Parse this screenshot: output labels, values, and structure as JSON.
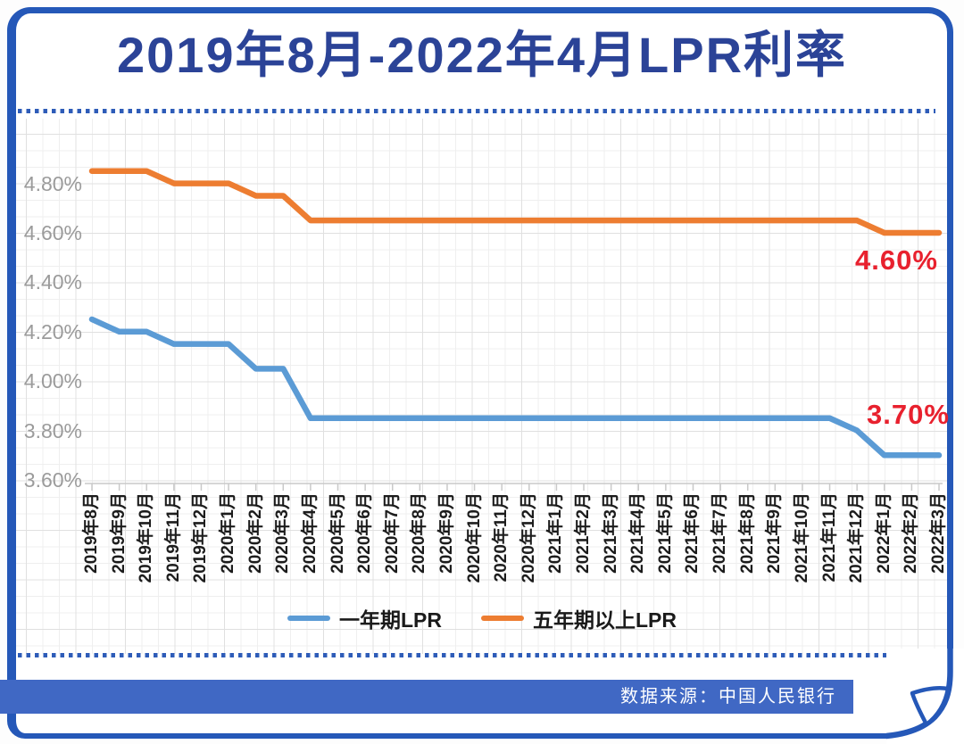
{
  "title": "2019年8月-2022年4月LPR利率",
  "source_banner": "数据来源：中国人民银行",
  "colors": {
    "frame_blue": "#2558B8",
    "title_blue": "#2B4397",
    "banner_blue": "#4068C4",
    "line_1y_blue": "#5B9BD5",
    "line_5y_orange": "#ED7D31",
    "annotation_red": "#E8212E",
    "axis_label_gray": "#9B9B9B"
  },
  "y_axis": {
    "ticks": [
      {
        "label": "4.80%",
        "value": 4.8
      },
      {
        "label": "4.60%",
        "value": 4.6
      },
      {
        "label": "4.40%",
        "value": 4.4
      },
      {
        "label": "4.20%",
        "value": 4.2
      },
      {
        "label": "4.00%",
        "value": 4.0
      },
      {
        "label": "3.80%",
        "value": 3.8
      },
      {
        "label": "3.60%",
        "value": 3.6
      }
    ]
  },
  "annotations": {
    "five_year_end": {
      "text": "4.60%",
      "series": "五年期以上LPR"
    },
    "one_year_end": {
      "text": "3.70%",
      "series": "一年期LPR"
    }
  },
  "legend": [
    {
      "label": "一年期LPR",
      "color": "#5B9BD5"
    },
    {
      "label": "五年期以上LPR",
      "color": "#ED7D31"
    }
  ],
  "chart_data": {
    "type": "line",
    "title": "2019年8月-2022年4月LPR利率",
    "xlabel": "",
    "ylabel": "",
    "ylim": [
      3.6,
      5.0
    ],
    "y_tick_step": 0.2,
    "grid": true,
    "legend_position": "bottom",
    "categories": [
      "2019年8月",
      "2019年9月",
      "2019年10月",
      "2019年11月",
      "2019年12月",
      "2020年1月",
      "2020年2月",
      "2020年3月",
      "2020年4月",
      "2020年5月",
      "2020年6月",
      "2020年7月",
      "2020年8月",
      "2020年9月",
      "2020年10月",
      "2020年11月",
      "2020年12月",
      "2021年1月",
      "2021年2月",
      "2021年3月",
      "2021年4月",
      "2021年5月",
      "2021年6月",
      "2021年7月",
      "2021年8月",
      "2021年9月",
      "2021年10月",
      "2021年11月",
      "2021年12月",
      "2022年1月",
      "2022年2月",
      "2022年3月"
    ],
    "series": [
      {
        "name": "一年期LPR",
        "color": "#5B9BD5",
        "values": [
          4.25,
          4.2,
          4.2,
          4.15,
          4.15,
          4.15,
          4.05,
          4.05,
          3.85,
          3.85,
          3.85,
          3.85,
          3.85,
          3.85,
          3.85,
          3.85,
          3.85,
          3.85,
          3.85,
          3.85,
          3.85,
          3.85,
          3.85,
          3.85,
          3.85,
          3.85,
          3.85,
          3.85,
          3.8,
          3.7,
          3.7,
          3.7
        ]
      },
      {
        "name": "五年期以上LPR",
        "color": "#ED7D31",
        "values": [
          4.85,
          4.85,
          4.85,
          4.8,
          4.8,
          4.8,
          4.75,
          4.75,
          4.65,
          4.65,
          4.65,
          4.65,
          4.65,
          4.65,
          4.65,
          4.65,
          4.65,
          4.65,
          4.65,
          4.65,
          4.65,
          4.65,
          4.65,
          4.65,
          4.65,
          4.65,
          4.65,
          4.65,
          4.65,
          4.6,
          4.6,
          4.6
        ]
      }
    ]
  }
}
